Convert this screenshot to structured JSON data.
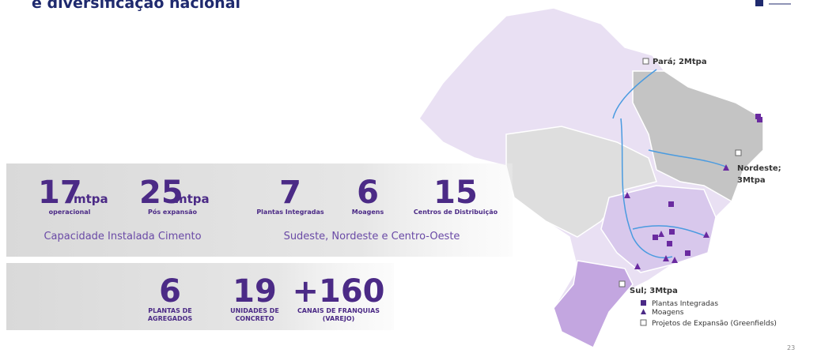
{
  "header": {
    "title": "e diversificação nacional"
  },
  "capacity": {
    "items": [
      {
        "value": 17,
        "unit": "mtpa",
        "label": "operacional"
      },
      {
        "value": 25,
        "unit": "mtpa",
        "label": "Pós expansão"
      }
    ],
    "caption": "Capacidade Instalada Cimento"
  },
  "units": {
    "items": [
      {
        "value": 7,
        "label": "Plantas Integradas"
      },
      {
        "value": 6,
        "label": "Moagens"
      },
      {
        "value": 15,
        "label": "Centros de Distribuição"
      }
    ],
    "caption": "Sudeste, Nordeste e Centro-Oeste"
  },
  "other": {
    "items": [
      {
        "value": 6,
        "label_lines": [
          "PLANTAS DE",
          "AGREGADOS"
        ]
      },
      {
        "value": 19,
        "label_lines": [
          "UNIDADES DE",
          "CONCRETO"
        ]
      },
      {
        "value": "+160",
        "label_lines": [
          "CANAIS DE FRANQUIAS",
          "(VAREJO)"
        ]
      }
    ]
  },
  "map": {
    "labels": [
      {
        "lines": [
          "Pará; 2Mtpa"
        ]
      },
      {
        "lines": [
          "Nordeste;",
          "3Mtpa"
        ]
      },
      {
        "lines": [
          "Sul; 3Mtpa"
        ]
      }
    ]
  },
  "legend": [
    "Plantas Integradas",
    "Moagens",
    "Projetos de Expansão (Greenfields)"
  ],
  "page_number": "23"
}
